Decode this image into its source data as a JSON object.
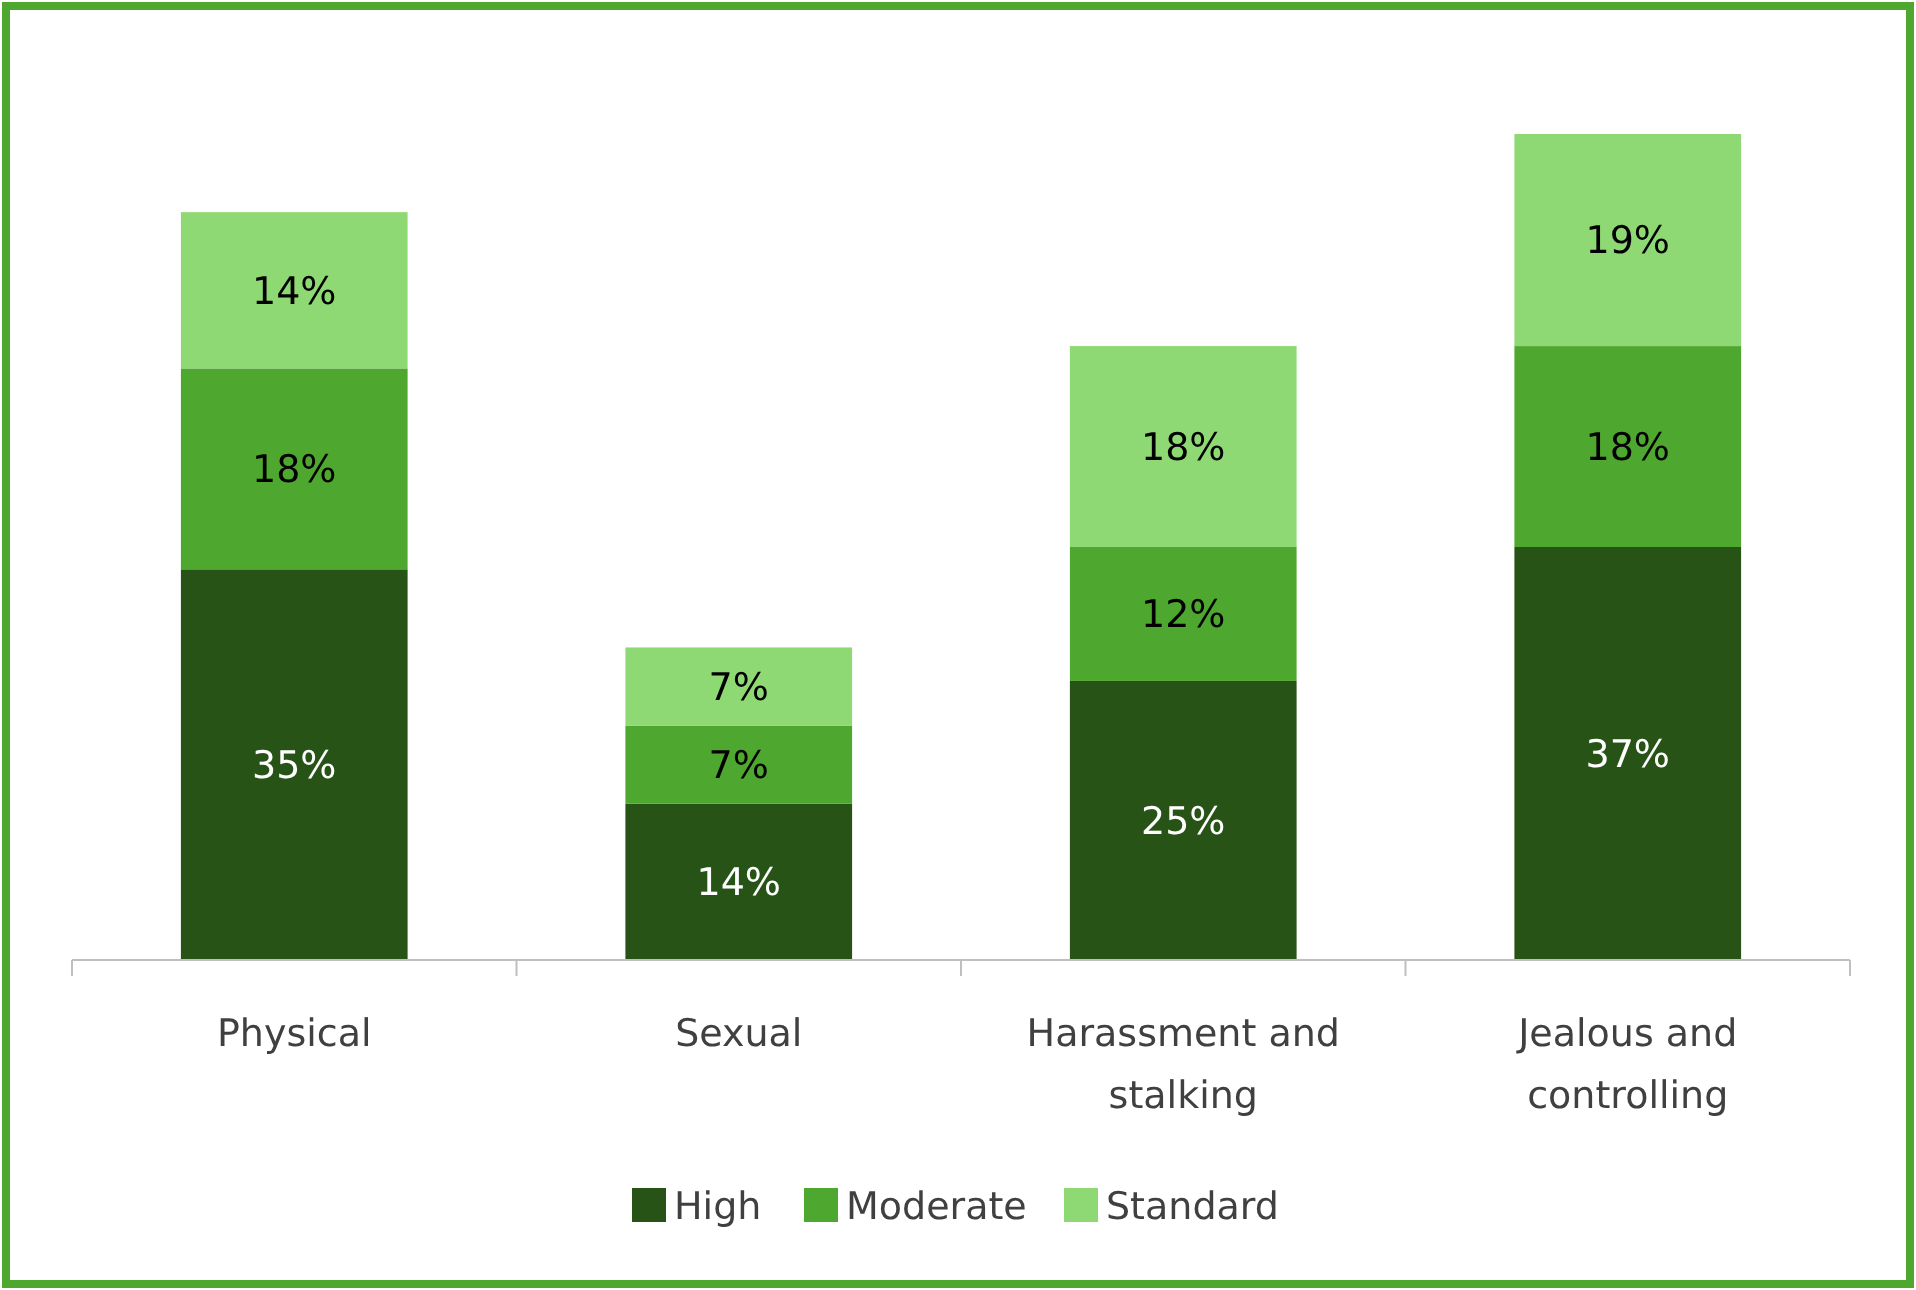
{
  "chart_data": {
    "type": "bar",
    "stacked": true,
    "legend": "bottom",
    "categories": [
      "Physical",
      "Sexual",
      "Harassment and stalking",
      "Jealous and controlling"
    ],
    "series": [
      {
        "name": "High",
        "color": "#275317",
        "values": [
          35,
          14,
          25,
          37
        ],
        "value_labels": [
          "35%",
          "14%",
          "25%",
          "37%"
        ]
      },
      {
        "name": "Moderate",
        "color": "#4ea72e",
        "values": [
          18,
          7,
          12,
          18
        ],
        "value_labels": [
          "18%",
          "7%",
          "12%",
          "18%"
        ]
      },
      {
        "name": "Standard",
        "color": "#8ed973",
        "values": [
          14,
          7,
          18,
          19
        ],
        "value_labels": [
          "14%",
          "7%",
          "18%",
          "19%"
        ]
      }
    ]
  }
}
